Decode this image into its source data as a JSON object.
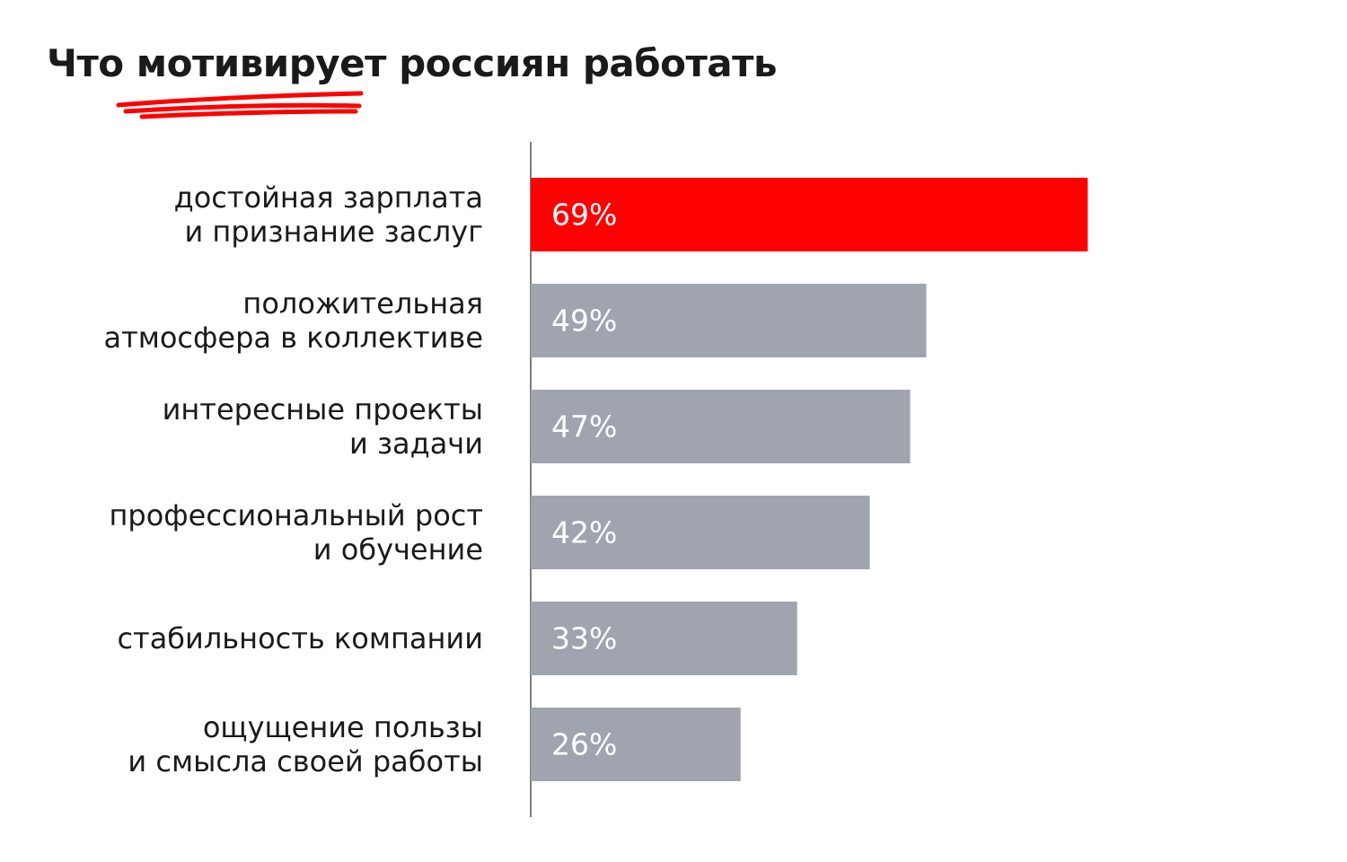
{
  "chart_data": {
    "type": "hbar",
    "title": "Что мотивирует россиян работать",
    "categories": [
      "достойная зарплата\nи признание заслуг",
      "положительная\nатмосфера в коллективе",
      "интересные проекты\nи задачи",
      "профессиональный рост\nи обучение",
      "стабильность компании",
      "ощущение пользы\nи смысла своей работы"
    ],
    "values": [
      69,
      49,
      47,
      42,
      33,
      26
    ],
    "value_labels": [
      "69%",
      "49%",
      "47%",
      "42%",
      "33%",
      "26%"
    ],
    "colors": [
      "#ff0000",
      "#a0a4ae",
      "#a0a4ae",
      "#a0a4ae",
      "#a0a4ae",
      "#a0a4ae"
    ],
    "xlim": [
      0,
      100
    ]
  }
}
